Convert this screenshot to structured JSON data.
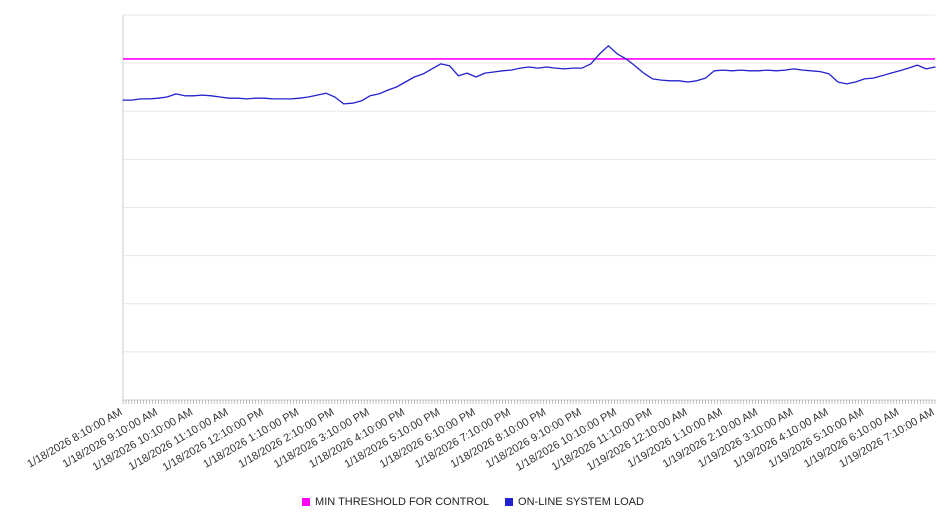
{
  "colors": {
    "background": "#ffffff",
    "grid": "#e8e8e8",
    "axis": "#cccccc",
    "tick": "#999999",
    "label": "#333333",
    "threshold": "#ff00ff",
    "load": "#2222cc"
  },
  "chart_data": {
    "type": "line",
    "title": "",
    "xlabel": "",
    "ylabel": "",
    "x_axis": {
      "labels": [
        "1/18/2026 8:10:00 AM",
        "1/18/2026 9:10:00 AM",
        "1/18/2026 10:10:00 AM",
        "1/18/2026 11:10:00 AM",
        "1/18/2026 12:10:00 PM",
        "1/18/2026 1:10:00 PM",
        "1/18/2026 2:10:00 PM",
        "1/18/2026 3:10:00 PM",
        "1/18/2026 4:10:00 PM",
        "1/18/2026 5:10:00 PM",
        "1/18/2026 6:10:00 PM",
        "1/18/2026 7:10:00 PM",
        "1/18/2026 8:10:00 PM",
        "1/18/2026 9:10:00 PM",
        "1/18/2026 10:10:00 PM",
        "1/18/2026 11:10:00 PM",
        "1/19/2026 12:10:00 AM",
        "1/19/2026 1:10:00 AM",
        "1/19/2026 2:10:00 AM",
        "1/19/2026 3:10:00 AM",
        "1/19/2026 4:10:00 AM",
        "1/19/2026 5:10:00 AM",
        "1/19/2026 6:10:00 AM",
        "1/19/2026 7:10:00 AM"
      ],
      "minor_tick_count": 277,
      "label_rotation_deg": -30
    },
    "y_axis": {
      "min": 0,
      "max": 100,
      "gridline_step": 12.5,
      "tick_labels_visible": false,
      "grid": true
    },
    "series": [
      {
        "name": "MIN THRESHOLD FOR CONTROL",
        "color": "#ff00ff",
        "type": "constant",
        "value": 88.6
      },
      {
        "name": "ON-LINE SYSTEM LOAD",
        "color": "#2222cc",
        "type": "line",
        "values": [
          77.9,
          77.9,
          78.2,
          78.2,
          78.4,
          78.7,
          79.5,
          79.0,
          79.0,
          79.2,
          79.0,
          78.7,
          78.4,
          78.4,
          78.2,
          78.4,
          78.4,
          78.2,
          78.2,
          78.2,
          78.4,
          78.7,
          79.2,
          79.7,
          78.7,
          76.9,
          77.1,
          77.7,
          79.0,
          79.5,
          80.5,
          81.3,
          82.6,
          83.9,
          84.7,
          86.0,
          87.3,
          86.8,
          84.2,
          84.9,
          83.9,
          84.9,
          85.2,
          85.5,
          85.7,
          86.2,
          86.5,
          86.2,
          86.5,
          86.2,
          86.0,
          86.2,
          86.2,
          87.3,
          89.9,
          92.0,
          89.9,
          88.6,
          86.8,
          84.9,
          83.4,
          83.1,
          82.9,
          82.9,
          82.6,
          82.9,
          83.6,
          85.5,
          85.7,
          85.5,
          85.7,
          85.5,
          85.5,
          85.7,
          85.5,
          85.7,
          86.0,
          85.7,
          85.5,
          85.3,
          84.7,
          82.6,
          82.1,
          82.6,
          83.4,
          83.6,
          84.2,
          84.9,
          85.5,
          86.2,
          87.0,
          86.0,
          86.5
        ]
      }
    ],
    "legend": {
      "position": "bottom",
      "items": [
        {
          "label": "MIN THRESHOLD FOR CONTROL",
          "color": "#ff00ff"
        },
        {
          "label": "ON-LINE SYSTEM LOAD",
          "color": "#2222cc"
        }
      ]
    }
  }
}
